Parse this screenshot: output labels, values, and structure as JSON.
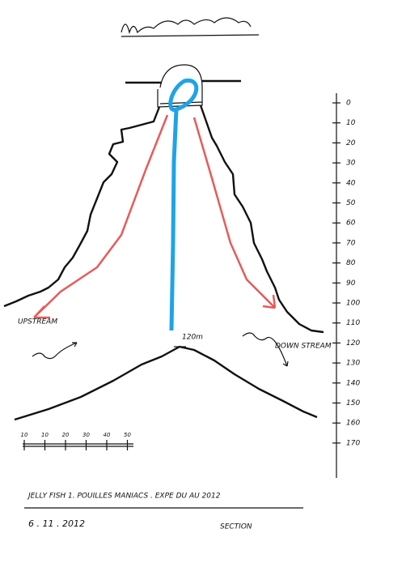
{
  "depth_scale": {
    "labels": [
      0,
      10,
      20,
      30,
      40,
      50,
      60,
      70,
      80,
      90,
      100,
      110,
      120,
      130,
      140,
      150,
      160,
      170
    ]
  },
  "labels": {
    "upstream": "UPSTREAM",
    "downstream": "DOWN STREAM",
    "depth": "120m"
  },
  "scale_bar": {
    "labels": [
      "10",
      "10",
      "20",
      "30",
      "40",
      "50"
    ]
  },
  "footer": {
    "title": "JELLY FISH 1.  POUILLES MANIACS .  EXPE DU AU 2012",
    "date": "6 . 11 . 2012",
    "section": "SECTION"
  }
}
